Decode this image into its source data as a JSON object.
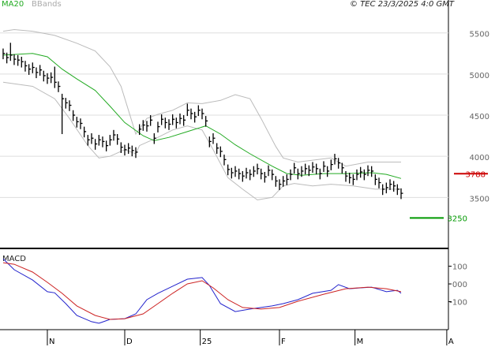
{
  "chart_data": [
    {
      "type": "ohlc",
      "credit": "© TEC 23/3/2025 4:0 GMT",
      "color": "#000000",
      "high": [
        5310,
        5260,
        5380,
        5240,
        5230,
        5210,
        5160,
        5120,
        5140,
        5080,
        5110,
        5040,
        5010,
        5020,
        5090,
        4910,
        4760,
        4710,
        4680,
        4560,
        4480,
        4460,
        4360,
        4260,
        4280,
        4210,
        4260,
        4240,
        4190,
        4260,
        4320,
        4270,
        4170,
        4140,
        4160,
        4130,
        4110,
        4390,
        4440,
        4430,
        4500,
        4280,
        4420,
        4510,
        4470,
        4450,
        4510,
        4470,
        4520,
        4500,
        4640,
        4580,
        4540,
        4620,
        4580,
        4490,
        4240,
        4280,
        4160,
        4120,
        4020,
        3900,
        3860,
        3880,
        3850,
        3820,
        3860,
        3840,
        3880,
        3910,
        3850,
        3810,
        3890,
        3840,
        3760,
        3720,
        3760,
        3780,
        3840,
        3920,
        3850,
        3880,
        3910,
        3890,
        3930,
        3910,
        3850,
        3940,
        3880,
        3960,
        4030,
        3980,
        3920,
        3820,
        3800,
        3780,
        3840,
        3870,
        3840,
        3890,
        3880,
        3780,
        3740,
        3660,
        3680,
        3720,
        3700,
        3660,
        3610
      ],
      "low": [
        5180,
        5130,
        5160,
        5110,
        5100,
        5080,
        5030,
        4990,
        5010,
        4950,
        4980,
        4910,
        4880,
        4890,
        4830,
        4780,
        4270,
        4580,
        4550,
        4430,
        4350,
        4330,
        4230,
        4130,
        4150,
        4080,
        4130,
        4110,
        4060,
        4130,
        4190,
        4140,
        4040,
        4010,
        4030,
        4000,
        3980,
        4260,
        4310,
        4300,
        4370,
        4150,
        4290,
        4380,
        4340,
        4320,
        4380,
        4340,
        4390,
        4370,
        4490,
        4450,
        4410,
        4490,
        4450,
        4360,
        4110,
        4150,
        4030,
        3990,
        3890,
        3770,
        3730,
        3750,
        3720,
        3690,
        3730,
        3710,
        3750,
        3780,
        3720,
        3680,
        3760,
        3710,
        3630,
        3590,
        3630,
        3650,
        3710,
        3790,
        3720,
        3750,
        3780,
        3760,
        3800,
        3780,
        3720,
        3810,
        3750,
        3830,
        3900,
        3850,
        3790,
        3690,
        3670,
        3650,
        3710,
        3740,
        3710,
        3760,
        3750,
        3650,
        3610,
        3530,
        3550,
        3590,
        3570,
        3530,
        3480
      ],
      "close": [
        5250,
        5200,
        5230,
        5180,
        5170,
        5150,
        5100,
        5060,
        5080,
        5020,
        5050,
        4980,
        4950,
        4960,
        4900,
        4850,
        4700,
        4650,
        4620,
        4500,
        4420,
        4400,
        4300,
        4200,
        4220,
        4150,
        4200,
        4180,
        4130,
        4200,
        4260,
        4210,
        4110,
        4080,
        4100,
        4070,
        4050,
        4330,
        4380,
        4370,
        4440,
        4220,
        4360,
        4450,
        4410,
        4390,
        4450,
        4410,
        4460,
        4440,
        4560,
        4520,
        4480,
        4560,
        4520,
        4430,
        4180,
        4220,
        4100,
        4060,
        3960,
        3840,
        3800,
        3820,
        3790,
        3760,
        3800,
        3780,
        3820,
        3850,
        3790,
        3750,
        3830,
        3780,
        3700,
        3660,
        3700,
        3720,
        3780,
        3860,
        3790,
        3820,
        3850,
        3830,
        3870,
        3850,
        3790,
        3880,
        3820,
        3900,
        3970,
        3920,
        3860,
        3760,
        3740,
        3720,
        3780,
        3810,
        3780,
        3830,
        3820,
        3720,
        3680,
        3600,
        3620,
        3660,
        3640,
        3600,
        3550
      ],
      "ma": {
        "name": "MA20",
        "color": "#22aa22",
        "x": [
          0,
          8,
          12,
          16,
          20,
          25,
          29,
          33,
          38,
          41,
          45,
          50,
          55,
          59,
          63,
          67,
          73,
          77,
          81,
          87,
          93,
          100,
          104,
          108
        ],
        "values": [
          5230,
          5250,
          5210,
          5060,
          4940,
          4800,
          4610,
          4410,
          4250,
          4190,
          4230,
          4300,
          4370,
          4270,
          4140,
          4030,
          3880,
          3790,
          3770,
          3790,
          3790,
          3800,
          3780,
          3730
        ]
      },
      "bands": {
        "name": "BBands",
        "color": "#bbbbbb",
        "upper": {
          "x": [
            0,
            3,
            8,
            14,
            20,
            25,
            29,
            32,
            34,
            36,
            39,
            42,
            46,
            50,
            54,
            59,
            63,
            67,
            70,
            74,
            76,
            80,
            89,
            93,
            99,
            106,
            108
          ],
          "values": [
            5520,
            5540,
            5520,
            5470,
            5375,
            5280,
            5090,
            4850,
            4560,
            4270,
            4460,
            4510,
            4560,
            4650,
            4640,
            4680,
            4750,
            4700,
            4460,
            4120,
            3980,
            3930,
            3980,
            3880,
            3930,
            3930,
            3930
          ]
        },
        "lower": {
          "x": [
            0,
            8,
            14,
            18,
            23,
            26,
            29,
            33,
            36,
            37,
            42,
            46,
            50,
            54,
            57,
            61,
            65,
            69,
            73,
            76,
            79,
            84,
            89,
            95,
            101,
            108
          ],
          "values": [
            4900,
            4850,
            4700,
            4460,
            4130,
            3980,
            4000,
            4080,
            4030,
            4130,
            4230,
            4320,
            4370,
            4320,
            4080,
            3740,
            3600,
            3470,
            3500,
            3640,
            3670,
            3640,
            3660,
            3640,
            3600,
            3600
          ]
        }
      },
      "levels": [
        {
          "value": 3788,
          "color": "#cc0000"
        },
        {
          "value": 3250,
          "color": "#009900"
        }
      ],
      "xlim": [
        -0.85,
        120.85
      ],
      "ylim": [
        2880,
        5900
      ],
      "yticks": [
        3500,
        4000,
        4500,
        5000,
        5500
      ],
      "grid": true
    },
    {
      "type": "macd",
      "title": "MACD",
      "series": [
        {
          "color": "#2222cc",
          "x": [
            0,
            3,
            8,
            12,
            14,
            17,
            20,
            24,
            26,
            29,
            33,
            36,
            39,
            42,
            46,
            50,
            54,
            56,
            59,
            63,
            67,
            73,
            76,
            80,
            84,
            89,
            91,
            94,
            97,
            100,
            104,
            107,
            108
          ],
          "values": [
            142,
            80,
            22,
            -44,
            -50,
            -111,
            -178,
            -213,
            -222,
            -200,
            -196,
            -169,
            -89,
            -53,
            -13,
            27,
            36,
            -9,
            -111,
            -156,
            -142,
            -124,
            -111,
            -89,
            -53,
            -36,
            -4,
            -27,
            -22,
            -18,
            -44,
            -36,
            -53
          ]
        },
        {
          "color": "#cc2222",
          "x": [
            0,
            3,
            8,
            12,
            16,
            20,
            25,
            29,
            33,
            38,
            42,
            46,
            50,
            54,
            57,
            61,
            65,
            70,
            75,
            80,
            87,
            93,
            99,
            104,
            108
          ],
          "values": [
            120,
            111,
            67,
            9,
            -53,
            -124,
            -178,
            -200,
            -196,
            -169,
            -111,
            -53,
            0,
            18,
            -22,
            -89,
            -133,
            -142,
            -133,
            -98,
            -58,
            -27,
            -18,
            -27,
            -44
          ]
        }
      ],
      "xlim": [
        -0.85,
        120.85
      ],
      "xticks": [
        {
          "value": 12,
          "label": "N"
        },
        {
          "value": 33,
          "label": "D"
        },
        {
          "value": 53.5,
          "label": "25"
        },
        {
          "value": 75,
          "label": "F"
        },
        {
          "value": 95.5,
          "label": "M"
        },
        {
          "value": 120.4,
          "label": "A"
        }
      ],
      "ylim": [
        -258,
        187
      ],
      "yticks": [
        100,
        {
          "value": 0,
          "label": "000"
        },
        -100
      ],
      "grid": false
    }
  ]
}
